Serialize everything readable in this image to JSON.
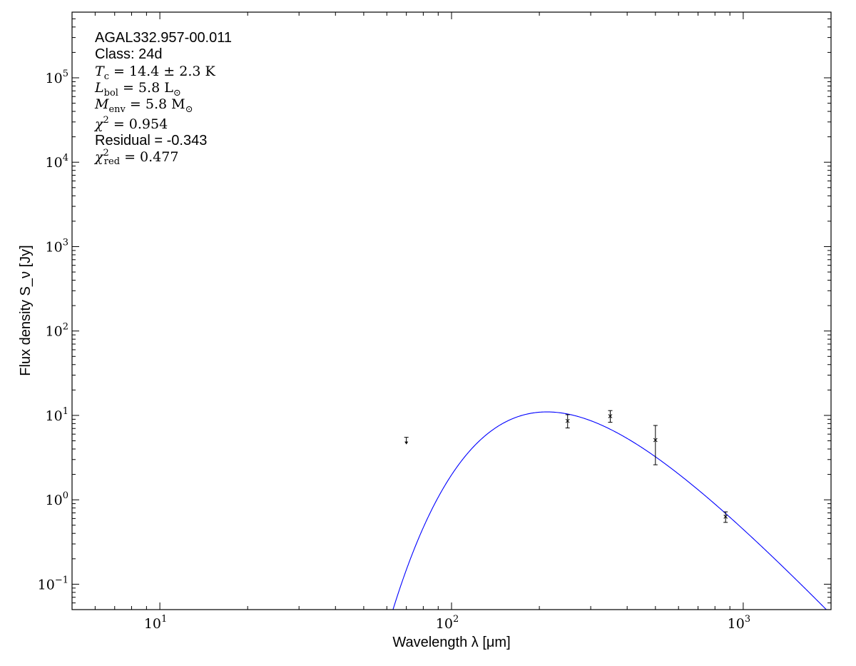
{
  "chart_data": {
    "type": "scatter",
    "x_scale": "log",
    "y_scale": "log",
    "xlim": [
      5,
      2000
    ],
    "ylim": [
      0.05,
      600000
    ],
    "grid": false,
    "xlabel": "Wavelength λ [μm]",
    "ylabel": "Flux density S_ν [Jy]",
    "x_ticks": [
      {
        "value": 10,
        "base": "10",
        "exp": "1"
      },
      {
        "value": 100,
        "base": "10",
        "exp": "2"
      },
      {
        "value": 1000,
        "base": "10",
        "exp": "3"
      }
    ],
    "y_ticks": [
      {
        "value": 0.1,
        "base": "10",
        "exp": "−1"
      },
      {
        "value": 1,
        "base": "10",
        "exp": "0"
      },
      {
        "value": 10,
        "base": "10",
        "exp": "1"
      },
      {
        "value": 100,
        "base": "10",
        "exp": "2"
      },
      {
        "value": 1000,
        "base": "10",
        "exp": "3"
      },
      {
        "value": 10000,
        "base": "10",
        "exp": "4"
      },
      {
        "value": 100000,
        "base": "10",
        "exp": "5"
      }
    ],
    "annotations": {
      "source": "AGAL332.957-00.011",
      "class": "Class: 24d",
      "tc": {
        "sym": "T",
        "sub": "c",
        "rest": " = 14.4 ± 2.3 K"
      },
      "lbol": {
        "sym": "L",
        "sub": "bol",
        "rest": " = 5.8 L",
        "tail": "⊙"
      },
      "menv": {
        "sym": "M",
        "sub": "env",
        "rest": " = 5.8 M",
        "tail": "⊙"
      },
      "chi2": {
        "sym": "χ",
        "sup": "2",
        "rest": " = 0.954"
      },
      "residual": "Residual = -0.343",
      "chi2red": {
        "sym": "χ",
        "sup": "2",
        "sub": "red",
        "rest": " = 0.477"
      }
    },
    "series": [
      {
        "kind": "upper-limit",
        "color": "#000000",
        "points": [
          {
            "x": 70,
            "y": 5.5
          }
        ]
      },
      {
        "kind": "measurement",
        "color": "#000000",
        "points": [
          {
            "x": 250,
            "y": 8.6,
            "ylow": 7.1,
            "yhigh": 10.2
          },
          {
            "x": 350,
            "y": 9.8,
            "ylow": 8.3,
            "yhigh": 11.4
          },
          {
            "x": 500,
            "y": 5.1,
            "ylow": 2.6,
            "yhigh": 7.6
          },
          {
            "x": 870,
            "y": 0.63,
            "ylow": 0.54,
            "yhigh": 0.72
          }
        ]
      },
      {
        "kind": "model-fit",
        "color": "#0000ff",
        "model": "greybody",
        "temperature_K": 14.4,
        "peak": {
          "x": 210,
          "y": 11.0
        }
      }
    ]
  }
}
